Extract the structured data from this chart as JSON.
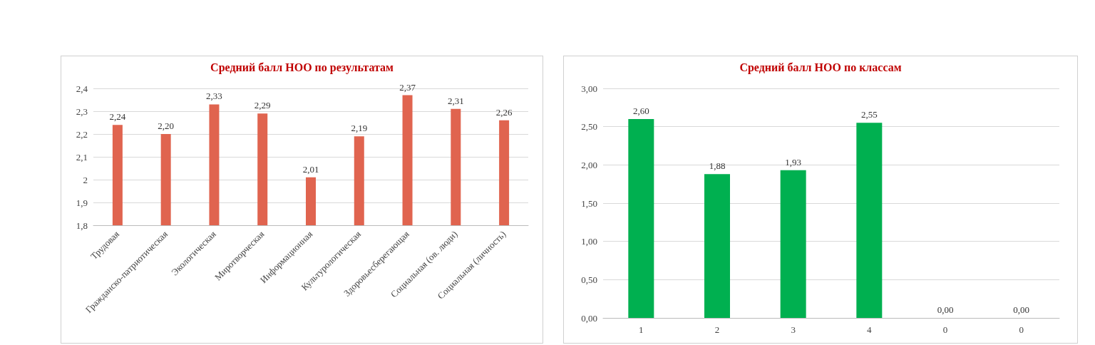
{
  "chart_data": [
    {
      "type": "bar",
      "title": "Средний балл НОО по результатам",
      "categories": [
        "Трудовая",
        "Гражданско-патриотическая",
        "Экологическая",
        "Миротворческая",
        "Информационная",
        "Культурологическая",
        "Здоровьесберегающая",
        "Социальная (ов. люди)",
        "Социальная (личность)"
      ],
      "series": [
        {
          "color": "#e0644f",
          "values": [
            2.24,
            2.2,
            2.33,
            2.29,
            2.01,
            2.19,
            2.37,
            2.31,
            2.26
          ],
          "value_labels": [
            "2,24",
            "2,20",
            "2,33",
            "2,29",
            "2,01",
            "2,19",
            "2,37",
            "2,31",
            "2,26"
          ]
        }
      ],
      "ylim": [
        1.8,
        2.4
      ],
      "yticks": [
        {
          "value": 1.8,
          "label": "1,8"
        },
        {
          "value": 1.9,
          "label": "1,9"
        },
        2,
        {
          "value": 2.1,
          "label": "2,1"
        },
        {
          "value": 2.2,
          "label": "2,2"
        },
        {
          "value": 2.3,
          "label": "2,3"
        },
        {
          "value": 2.4,
          "label": "2,4"
        }
      ],
      "grid": "y"
    },
    {
      "type": "bar",
      "title": "Средний балл НОО по классам",
      "categories": [
        "1",
        "2",
        "3",
        "4",
        "0",
        "0"
      ],
      "series": [
        {
          "color": "#00b050",
          "values": [
            2.6,
            1.88,
            1.93,
            2.55,
            0,
            0
          ],
          "value_labels": [
            "2,60",
            "1,88",
            "1,93",
            "2,55",
            "0,00",
            "0,00"
          ]
        }
      ],
      "ylim": [
        0,
        3
      ],
      "yticks": [
        {
          "value": 0,
          "label": "0,00"
        },
        {
          "value": 0.5,
          "label": "0,50"
        },
        {
          "value": 1,
          "label": "1,00"
        },
        {
          "value": 1.5,
          "label": "1,50"
        },
        {
          "value": 2,
          "label": "2,00"
        },
        {
          "value": 2.5,
          "label": "2,50"
        },
        {
          "value": 3,
          "label": "3,00"
        }
      ],
      "grid": "y"
    }
  ]
}
